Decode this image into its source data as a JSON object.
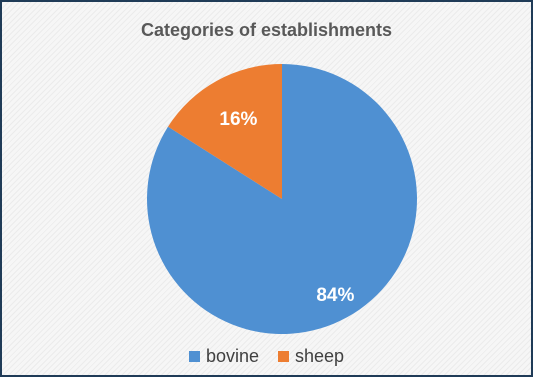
{
  "chart_data": {
    "type": "pie",
    "title": "Categories of establishments",
    "categories": [
      "bovine",
      "sheep"
    ],
    "values": [
      84,
      16
    ],
    "labels": [
      "84%",
      "16%"
    ],
    "colors": [
      "#4f90d2",
      "#ed7d31"
    ],
    "legend_position": "bottom"
  }
}
